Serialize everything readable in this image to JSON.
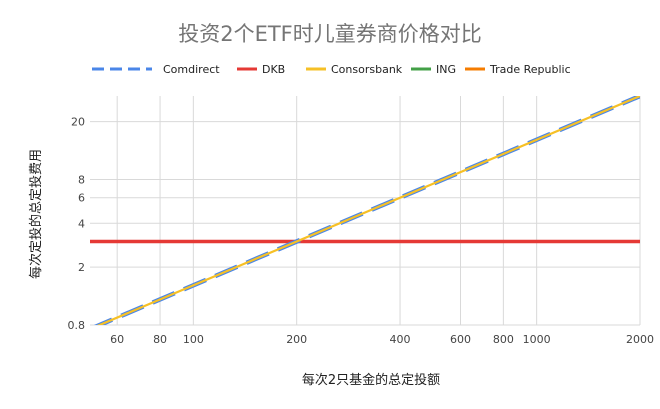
{
  "chart_data": {
    "type": "line",
    "title": "投资2个ETF时儿童券商价格对比",
    "xlabel": "每次2只基金的总定投额",
    "ylabel": "每次定投的总定投费用",
    "x_scale": "log",
    "y_scale": "log",
    "xlim": [
      50,
      2000
    ],
    "ylim": [
      0.8,
      30
    ],
    "x_ticks": [
      60,
      80,
      100,
      200,
      400,
      600,
      800,
      1000,
      2000
    ],
    "y_ticks": [
      0.8,
      2,
      4,
      6,
      8,
      20
    ],
    "grid": true,
    "legend_position": "top",
    "series": [
      {
        "name": "Comdirect",
        "color": "#4a86e8",
        "style": "dashed",
        "x": [
          50,
          2000
        ],
        "y": [
          0.75,
          30
        ]
      },
      {
        "name": "DKB",
        "color": "#e53935",
        "style": "solid",
        "x": [
          50,
          2000
        ],
        "y": [
          3,
          3
        ]
      },
      {
        "name": "Consorsbank",
        "color": "#f6c026",
        "style": "solid",
        "x": [
          50,
          2000
        ],
        "y": [
          0.75,
          30
        ]
      },
      {
        "name": "ING",
        "color": "#43a047",
        "style": "solid",
        "x": [
          50,
          2000
        ],
        "y": [
          0.75,
          30
        ]
      },
      {
        "name": "Trade Republic",
        "color": "#f57c00",
        "style": "solid",
        "x": [
          50,
          2000
        ],
        "y": [
          0.75,
          30
        ]
      }
    ]
  }
}
